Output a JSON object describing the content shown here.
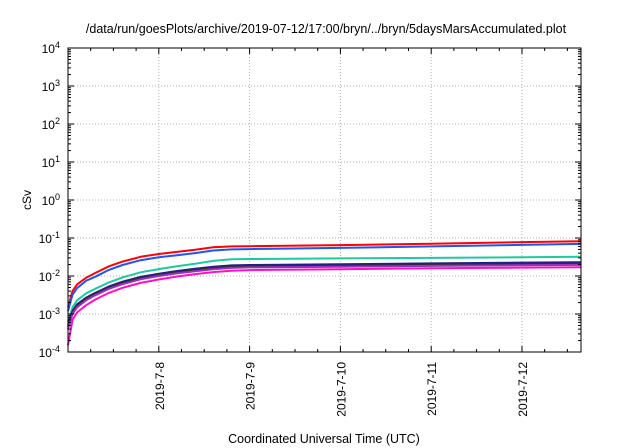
{
  "chart_data": {
    "type": "line",
    "title": "/data/run/goesPlots/archive/2019-07-12/17:00/bryn/../bryn/5daysMarsAccumulated.plot",
    "xlabel": "Coordinated Universal Time (UTC)",
    "ylabel": "cSv",
    "yscale": "log",
    "ylim": [
      0.0001,
      10000
    ],
    "xlim": [
      0,
      5.65
    ],
    "x_unit": "days since 2019-07-07 00:00 UTC",
    "grid": true,
    "yticks": [
      {
        "base": "10",
        "exp": "-4",
        "value": 0.0001
      },
      {
        "base": "10",
        "exp": "-3",
        "value": 0.001
      },
      {
        "base": "10",
        "exp": "-2",
        "value": 0.01
      },
      {
        "base": "10",
        "exp": "-1",
        "value": 0.1
      },
      {
        "base": "10",
        "exp": "0",
        "value": 1
      },
      {
        "base": "10",
        "exp": "1",
        "value": 10
      },
      {
        "base": "10",
        "exp": "2",
        "value": 100
      },
      {
        "base": "10",
        "exp": "3",
        "value": 1000
      },
      {
        "base": "10",
        "exp": "4",
        "value": 10000
      }
    ],
    "xticks": [
      {
        "label": "2019-7-8",
        "value": 1
      },
      {
        "label": "2019-7-9",
        "value": 2
      },
      {
        "label": "2019-7-10",
        "value": 3
      },
      {
        "label": "2019-7-11",
        "value": 4
      },
      {
        "label": "2019-7-12",
        "value": 5
      }
    ],
    "x": [
      0,
      0.05,
      0.1,
      0.2,
      0.3,
      0.45,
      0.6,
      0.8,
      1.0,
      1.2,
      1.4,
      1.6,
      1.8,
      2.0,
      3.0,
      4.0,
      5.0,
      5.65
    ],
    "series": [
      {
        "color": "#ff0000",
        "values": [
          0.0015,
          0.004,
          0.006,
          0.009,
          0.012,
          0.018,
          0.024,
          0.032,
          0.038,
          0.043,
          0.049,
          0.057,
          0.06,
          0.061,
          0.065,
          0.071,
          0.078,
          0.082
        ]
      },
      {
        "color": "#2255ee",
        "values": [
          0.0012,
          0.0032,
          0.0048,
          0.0075,
          0.0095,
          0.0145,
          0.0195,
          0.026,
          0.031,
          0.035,
          0.04,
          0.047,
          0.05,
          0.051,
          0.055,
          0.06,
          0.066,
          0.07
        ]
      },
      {
        "color": "#20c8a0",
        "values": [
          0.0006,
          0.0015,
          0.0023,
          0.0035,
          0.0046,
          0.0068,
          0.0092,
          0.0125,
          0.0152,
          0.018,
          0.021,
          0.025,
          0.0275,
          0.028,
          0.029,
          0.03,
          0.031,
          0.032
        ]
      },
      {
        "color": "#202080",
        "values": [
          0.0005,
          0.0012,
          0.0018,
          0.0027,
          0.0036,
          0.0053,
          0.0071,
          0.0095,
          0.0115,
          0.0135,
          0.0155,
          0.0175,
          0.019,
          0.0195,
          0.0205,
          0.0215,
          0.0225,
          0.023
        ]
      },
      {
        "color": "#303030",
        "values": [
          0.00045,
          0.0011,
          0.0016,
          0.0025,
          0.0033,
          0.0049,
          0.0065,
          0.0087,
          0.0106,
          0.0124,
          0.0142,
          0.016,
          0.0172,
          0.0177,
          0.0186,
          0.0195,
          0.0203,
          0.0208
        ]
      },
      {
        "color": "#9a30c0",
        "values": [
          0.0004,
          0.001,
          0.0015,
          0.0023,
          0.0031,
          0.0046,
          0.0061,
          0.0082,
          0.01,
          0.0117,
          0.0134,
          0.0151,
          0.0163,
          0.0168,
          0.0176,
          0.0184,
          0.0191,
          0.0196
        ]
      },
      {
        "color": "#ff10c8",
        "values": [
          0.00015,
          0.0007,
          0.0011,
          0.0017,
          0.0024,
          0.0036,
          0.0049,
          0.0066,
          0.0081,
          0.0097,
          0.0112,
          0.0127,
          0.0138,
          0.0143,
          0.0151,
          0.0159,
          0.0166,
          0.017
        ]
      }
    ]
  }
}
